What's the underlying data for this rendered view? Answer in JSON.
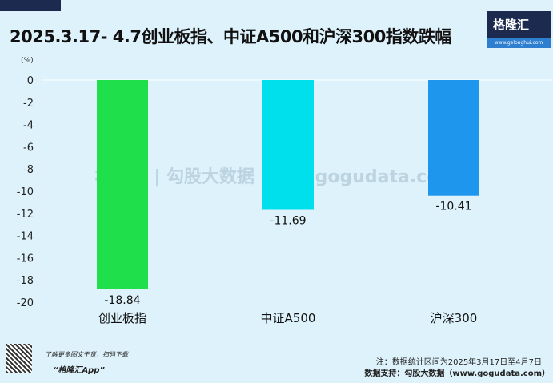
{
  "title": "2025.3.17- 4.7创业板指、中证A500和沪深300指数跌幅",
  "logo": {
    "name": "格隆汇",
    "url": "www.gelonghui.com"
  },
  "watermark": "格隆汇 | 勾股大数据 www.gogudata.com",
  "footer": {
    "promo": "了解更多图文干货，扫码下载",
    "app": "“格隆汇App”",
    "note": "注：数据统计区间为2025年3月17日至4月7日",
    "source": "数据支持：勾股大数据（www.gogudata.com）"
  },
  "chart_data": {
    "type": "bar",
    "ylabel": "(%)",
    "ylim": [
      -20,
      0
    ],
    "yticks": [
      0,
      -2,
      -4,
      -6,
      -8,
      -10,
      -12,
      -14,
      -16,
      -18,
      -20
    ],
    "categories": [
      "创业板指",
      "中证A500",
      "沪深300"
    ],
    "values": [
      -18.84,
      -11.69,
      -10.41
    ],
    "colors": [
      "#1fe04a",
      "#00e0ec",
      "#1e96ee"
    ],
    "grid": false
  }
}
